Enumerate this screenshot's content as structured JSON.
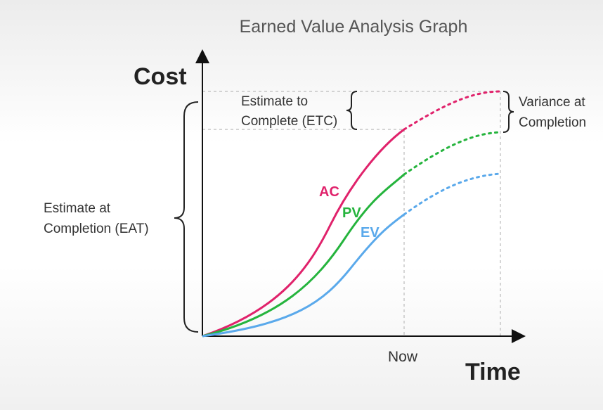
{
  "title": "Earned Value Analysis Graph",
  "axes": {
    "y_label": "Cost",
    "x_label": "Time",
    "now_label": "Now"
  },
  "annotations": {
    "etc": [
      "Estimate to",
      "Complete (ETC)"
    ],
    "variance": [
      "Variance at",
      "Completion"
    ],
    "eat": [
      "Estimate at",
      "Completion (EAT)"
    ]
  },
  "curves": [
    {
      "label": "AC",
      "color": "#e0226b"
    },
    {
      "label": "PV",
      "color": "#25b43d"
    },
    {
      "label": "EV",
      "color": "#5aa9eb"
    }
  ]
}
